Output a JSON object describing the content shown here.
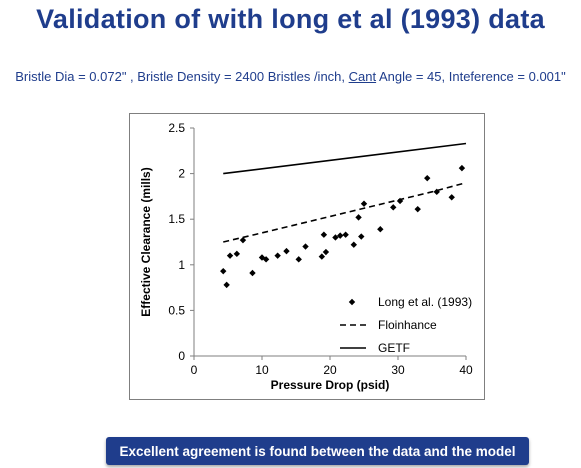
{
  "slide": {
    "title": "Validation of with long et al (1993) data",
    "params_part1": "Bristle Dia = 0.072\" ,  Bristle Density = 2400 Bristles /inch, ",
    "params_cant": "Cant",
    "params_part2": " Angle = 45,  Inteference = 0.001\"",
    "footer": "Excellent agreement is found between the data and the model"
  },
  "chart_data": {
    "type": "scatter",
    "title": "",
    "xlabel": "Pressure Drop (psid)",
    "ylabel": "Effective Clearance (mills)",
    "xlim": [
      0,
      40
    ],
    "ylim": [
      0,
      2.5
    ],
    "xticks": [
      0,
      10,
      20,
      30,
      40
    ],
    "yticks": [
      0,
      0.5,
      1,
      1.5,
      2,
      2.5
    ],
    "ytick_labels": [
      "0",
      "0.5",
      "1",
      "1.5",
      "2",
      "2.5"
    ],
    "grid": false,
    "legend_position": "bottom-right",
    "series": [
      {
        "name": "Long et al. (1993)",
        "style": "markers",
        "marker": "diamond",
        "color": "#000000",
        "x": [
          4.3,
          4.8,
          5.3,
          6.3,
          7.2,
          8.6,
          10,
          10.6,
          12.3,
          13.6,
          15.4,
          16.4,
          18.8,
          19.1,
          19.4,
          20.8,
          21.5,
          22.3,
          23.5,
          24.2,
          24.6,
          25,
          27.4,
          29.3,
          30.3,
          32.9,
          34.3,
          35.7,
          37.9,
          39.4
        ],
        "y": [
          0.93,
          0.78,
          1.1,
          1.12,
          1.27,
          0.91,
          1.08,
          1.06,
          1.1,
          1.15,
          1.06,
          1.2,
          1.09,
          1.33,
          1.14,
          1.3,
          1.32,
          1.33,
          1.22,
          1.52,
          1.31,
          1.67,
          1.39,
          1.63,
          1.7,
          1.61,
          1.95,
          1.8,
          1.74,
          2.06
        ]
      },
      {
        "name": "Floinhance",
        "style": "dashed",
        "color": "#000000",
        "x": [
          4.3,
          10,
          15,
          20,
          25,
          30,
          35,
          40
        ],
        "y": [
          1.25,
          1.35,
          1.44,
          1.53,
          1.62,
          1.71,
          1.8,
          1.9
        ]
      },
      {
        "name": "GETF",
        "style": "solid",
        "color": "#000000",
        "x": [
          4.3,
          40
        ],
        "y": [
          2.0,
          2.33
        ]
      }
    ]
  }
}
